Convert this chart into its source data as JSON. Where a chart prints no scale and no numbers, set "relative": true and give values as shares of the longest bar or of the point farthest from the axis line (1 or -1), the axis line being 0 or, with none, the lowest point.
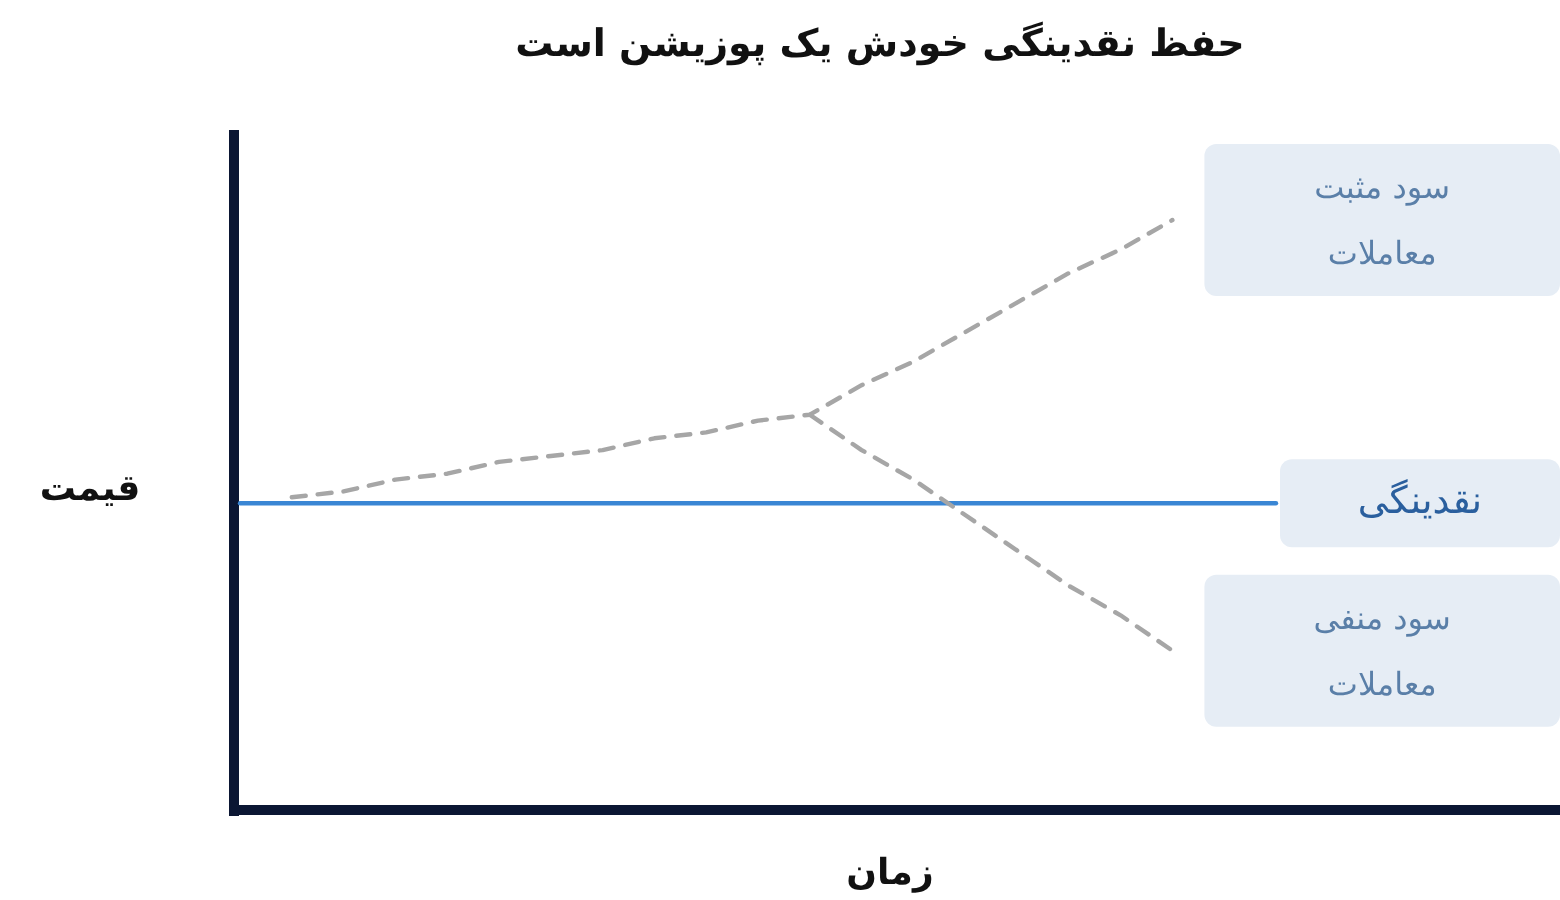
{
  "chart_data": {
    "type": "line",
    "relative": true,
    "title": "حفظ نقدینگی خودش یک پوزیشن است",
    "xlabel": "زمان",
    "ylabel": "قیمت",
    "categories": [
      null,
      null,
      null,
      null,
      null,
      null,
      null,
      null,
      null,
      null,
      null,
      null,
      null,
      null,
      null,
      null,
      null,
      null,
      null,
      null,
      null
    ],
    "series": [
      {
        "name": "سود مثبت معاملات",
        "color": "#a6a6a6",
        "line_style": "dashed",
        "values": [
          null,
          0.53,
          0.54,
          0.56,
          0.57,
          0.59,
          0.6,
          0.61,
          0.63,
          0.64,
          0.66,
          0.67,
          0.72,
          0.76,
          0.81,
          0.86,
          0.91,
          0.95,
          1.0,
          null,
          null
        ]
      },
      {
        "name": "نقدینگی",
        "color": "#3a86d4",
        "line_style": "solid",
        "values": [
          0.52,
          0.52,
          0.52,
          0.52,
          0.52,
          0.52,
          0.52,
          0.52,
          0.52,
          0.52,
          0.52,
          0.52,
          0.52,
          0.52,
          0.52,
          0.52,
          0.52,
          0.52,
          0.52,
          0.52,
          0.52
        ]
      },
      {
        "name": "سود منفی معاملات",
        "color": "#a6a6a6",
        "line_style": "dashed",
        "values": [
          null,
          null,
          null,
          null,
          null,
          null,
          null,
          null,
          null,
          null,
          null,
          0.67,
          0.61,
          0.56,
          0.5,
          0.44,
          0.38,
          0.33,
          0.27,
          null,
          null
        ]
      }
    ]
  }
}
